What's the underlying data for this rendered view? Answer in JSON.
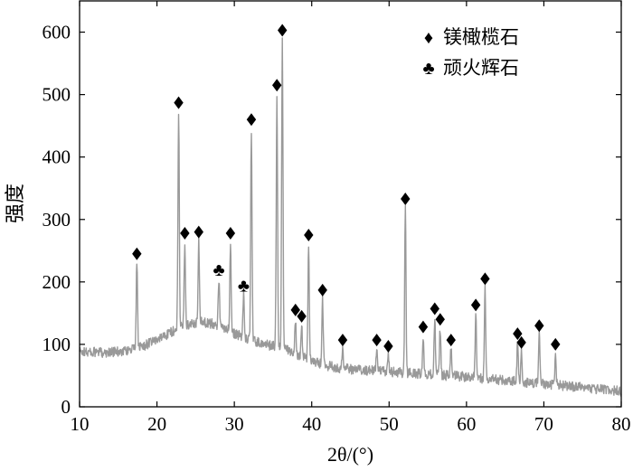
{
  "chart_data": {
    "type": "line",
    "title": "",
    "xlabel": "2θ/(°)",
    "ylabel": "强度",
    "xlim": [
      10,
      80
    ],
    "ylim": [
      0,
      650
    ],
    "xticks": [
      10,
      20,
      30,
      40,
      50,
      60,
      70,
      80
    ],
    "yticks": [
      0,
      100,
      200,
      300,
      400,
      500,
      600
    ],
    "grid": false,
    "legend_position": "top-right",
    "line_color": "#999999",
    "series": [
      {
        "peaks": [
          {
            "x": 17.4,
            "y": 245
          },
          {
            "x": 22.8,
            "y": 487
          },
          {
            "x": 23.6,
            "y": 278
          },
          {
            "x": 25.4,
            "y": 280
          },
          {
            "x": 28.0,
            "y": 220
          },
          {
            "x": 29.5,
            "y": 278
          },
          {
            "x": 31.2,
            "y": 195
          },
          {
            "x": 32.2,
            "y": 460
          },
          {
            "x": 35.5,
            "y": 515
          },
          {
            "x": 36.2,
            "y": 603
          },
          {
            "x": 37.9,
            "y": 155
          },
          {
            "x": 38.7,
            "y": 145
          },
          {
            "x": 39.6,
            "y": 275
          },
          {
            "x": 41.4,
            "y": 187
          },
          {
            "x": 44.0,
            "y": 107
          },
          {
            "x": 48.4,
            "y": 107
          },
          {
            "x": 49.9,
            "y": 97
          },
          {
            "x": 52.1,
            "y": 333
          },
          {
            "x": 54.4,
            "y": 128
          },
          {
            "x": 55.9,
            "y": 157
          },
          {
            "x": 56.6,
            "y": 140
          },
          {
            "x": 58.0,
            "y": 107
          },
          {
            "x": 61.2,
            "y": 163
          },
          {
            "x": 62.4,
            "y": 205
          },
          {
            "x": 66.6,
            "y": 117
          },
          {
            "x": 67.1,
            "y": 103
          },
          {
            "x": 69.4,
            "y": 130
          },
          {
            "x": 71.5,
            "y": 100
          }
        ]
      }
    ],
    "markers": {
      "olivine": [
        {
          "x": 17.4,
          "y": 245
        },
        {
          "x": 22.8,
          "y": 487
        },
        {
          "x": 23.6,
          "y": 278
        },
        {
          "x": 25.4,
          "y": 280
        },
        {
          "x": 29.5,
          "y": 278
        },
        {
          "x": 32.2,
          "y": 460
        },
        {
          "x": 35.5,
          "y": 515
        },
        {
          "x": 36.2,
          "y": 603
        },
        {
          "x": 37.9,
          "y": 155
        },
        {
          "x": 38.7,
          "y": 145
        },
        {
          "x": 39.6,
          "y": 275
        },
        {
          "x": 41.4,
          "y": 187
        },
        {
          "x": 44.0,
          "y": 107
        },
        {
          "x": 48.4,
          "y": 107
        },
        {
          "x": 49.9,
          "y": 97
        },
        {
          "x": 52.1,
          "y": 333
        },
        {
          "x": 54.4,
          "y": 128
        },
        {
          "x": 55.9,
          "y": 157
        },
        {
          "x": 56.6,
          "y": 140
        },
        {
          "x": 58.0,
          "y": 107
        },
        {
          "x": 61.2,
          "y": 163
        },
        {
          "x": 62.4,
          "y": 205
        },
        {
          "x": 66.6,
          "y": 117
        },
        {
          "x": 67.1,
          "y": 103
        },
        {
          "x": 69.4,
          "y": 130
        },
        {
          "x": 71.5,
          "y": 100
        }
      ],
      "pyroxene": [
        {
          "x": 28.0,
          "y": 220
        },
        {
          "x": 31.2,
          "y": 195
        }
      ]
    },
    "legend": [
      {
        "symbol": "♦",
        "label": "镁橄榄石"
      },
      {
        "symbol": "♣",
        "label": "顽火辉石"
      }
    ]
  }
}
